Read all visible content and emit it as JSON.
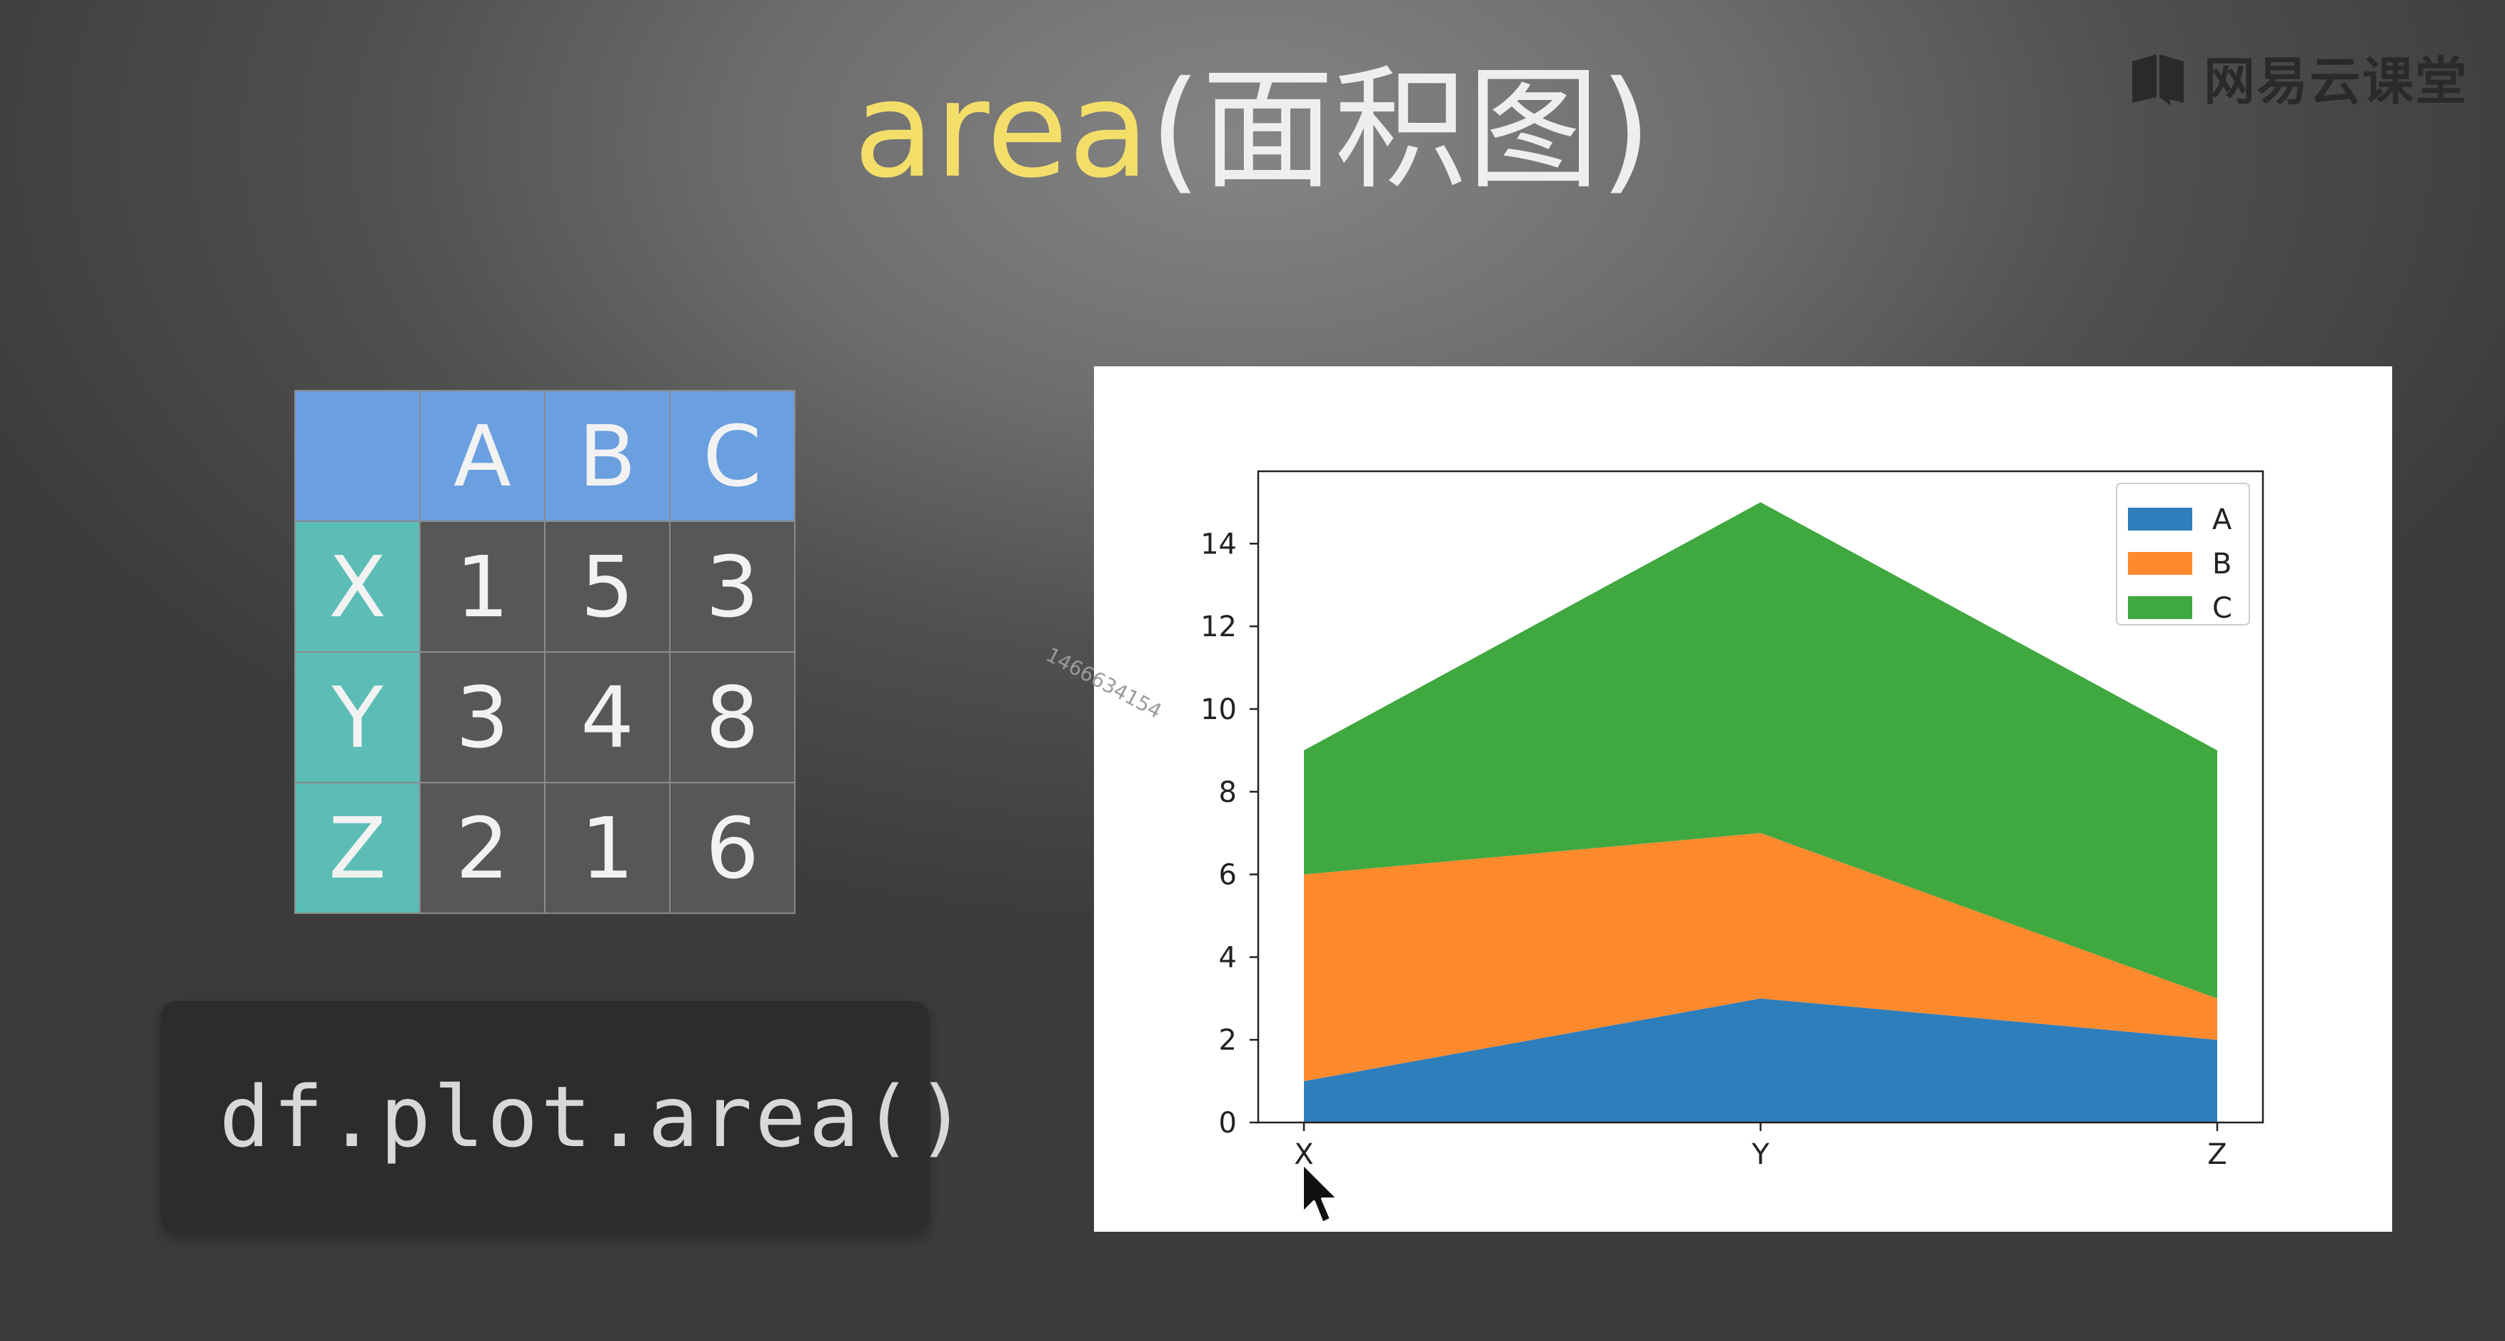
{
  "brand": {
    "text": "网易云课堂"
  },
  "title": {
    "part1": "area",
    "part2": "(面积图)"
  },
  "table": {
    "columns": [
      "A",
      "B",
      "C"
    ],
    "rows": [
      {
        "label": "X",
        "values": [
          "1",
          "5",
          "3"
        ]
      },
      {
        "label": "Y",
        "values": [
          "3",
          "4",
          "8"
        ]
      },
      {
        "label": "Z",
        "values": [
          "2",
          "1",
          "6"
        ]
      }
    ]
  },
  "code": "df.plot.area()",
  "watermark": "1466634154",
  "chart_data": {
    "type": "area",
    "stacked": true,
    "categories": [
      "X",
      "Y",
      "Z"
    ],
    "series": [
      {
        "name": "A",
        "values": [
          1,
          3,
          2
        ],
        "color": "#2f7ebc"
      },
      {
        "name": "B",
        "values": [
          5,
          4,
          1
        ],
        "color": "#ff8a2e"
      },
      {
        "name": "C",
        "values": [
          3,
          8,
          6
        ],
        "color": "#3fa83f"
      }
    ],
    "yticks": [
      0,
      2,
      4,
      6,
      8,
      10,
      12,
      14
    ],
    "ylim": [
      0,
      15.75
    ],
    "legend": "top-right",
    "grid": false,
    "xlabel": "",
    "ylabel": ""
  }
}
